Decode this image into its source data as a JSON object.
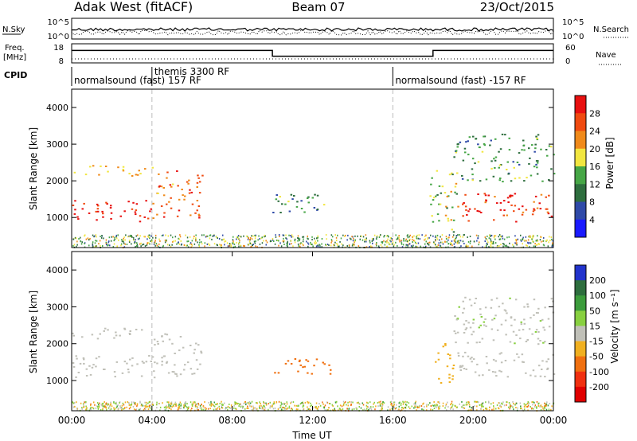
{
  "header": {
    "station": "Adak West (fitACF)",
    "beam": "Beam 07",
    "date": "23/Oct/2015"
  },
  "panels": {
    "nsky_label": "N.Sky",
    "nsearch_label": "N.Search",
    "freq_label": "Freq.",
    "freq_unit": "[MHz]",
    "nave_label": "Nave",
    "cpid_label": "CPID",
    "nsky_ticks": [
      "10^5",
      "10^0"
    ],
    "nsearch_ticks": [
      "10^5",
      "10^0"
    ],
    "freq_ticks": [
      "18",
      "8"
    ],
    "nave_ticks": [
      "60",
      "0"
    ],
    "cpid_segments": [
      {
        "label": "normalsound (fast) 157 RF",
        "start": 0.0,
        "end": 16.0
      },
      {
        "label": "themis 3300 RF",
        "start": 4.0,
        "end": 16.0
      },
      {
        "label": "normalsound (fast) -157 RF",
        "start": 16.0,
        "end": 24.0
      }
    ],
    "freq_steps": [
      {
        "start": 0.0,
        "end": 10.0,
        "mhz": 14.5
      },
      {
        "start": 10.0,
        "end": 18.0,
        "mhz": 11.5
      },
      {
        "start": 18.0,
        "end": 24.0,
        "mhz": 14.5
      }
    ]
  },
  "chart_data": [
    {
      "type": "heatmap",
      "title": "",
      "xlabel": "",
      "ylabel": "Slant Range [km]",
      "xlim": [
        0,
        24
      ],
      "ylim": [
        180,
        4500
      ],
      "yticks": [
        "1000",
        "2000",
        "3000",
        "4000"
      ],
      "colorbar_label": "Power [dB]",
      "colorbar_ticks": [
        "4",
        "8",
        "12",
        "16",
        "20",
        "24",
        "28"
      ],
      "colorbar_colors": [
        "#1a1aff",
        "#2f4aa8",
        "#2e6e3e",
        "#46a646",
        "#f2e640",
        "#f08a1a",
        "#f04a10",
        "#e81010"
      ],
      "echo_regions": [
        {
          "t0": 0.0,
          "t1": 4.0,
          "r0": 900,
          "r1": 1500,
          "value": 28
        },
        {
          "t0": 0.0,
          "t1": 4.0,
          "r0": 2150,
          "r1": 2450,
          "value": 18
        },
        {
          "t0": 4.0,
          "t1": 6.5,
          "r0": 1000,
          "r1": 2300,
          "value": 22
        },
        {
          "t0": 10.0,
          "t1": 13.0,
          "r0": 1150,
          "r1": 1700,
          "value": 10
        },
        {
          "t0": 17.8,
          "t1": 19.2,
          "r0": 600,
          "r1": 2300,
          "value": 14
        },
        {
          "t0": 19.2,
          "t1": 24.0,
          "r0": 900,
          "r1": 1700,
          "value": 26
        },
        {
          "t0": 19.0,
          "t1": 24.0,
          "r0": 2000,
          "r1": 3300,
          "value": 10
        }
      ]
    },
    {
      "type": "heatmap",
      "title": "",
      "xlabel": "Time UT",
      "ylabel": "Slant Range [km]",
      "xlim": [
        0,
        24
      ],
      "ylim": [
        180,
        4500
      ],
      "yticks": [
        "1000",
        "2000",
        "3000",
        "4000"
      ],
      "xticks": [
        "00:00",
        "04:00",
        "08:00",
        "12:00",
        "16:00",
        "20:00",
        "00:00"
      ],
      "colorbar_label": "Velocity [m s⁻¹]",
      "colorbar_ticks": [
        "200",
        "100",
        "50",
        "15",
        "-15",
        "-50",
        "-100",
        "-200"
      ],
      "colorbar_colors": [
        "#2233cc",
        "#2e6e3e",
        "#3c9c3c",
        "#88d040",
        "#c0c0b8",
        "#f0b020",
        "#f07010",
        "#f03010",
        "#e00000"
      ],
      "echo_regions": [
        {
          "t0": 0.0,
          "t1": 4.0,
          "r0": 1100,
          "r1": 1700,
          "value": 0
        },
        {
          "t0": 0.0,
          "t1": 4.0,
          "r0": 2150,
          "r1": 2450,
          "value": 0
        },
        {
          "t0": 4.0,
          "t1": 6.5,
          "r0": 1100,
          "r1": 2300,
          "value": 0
        },
        {
          "t0": 10.0,
          "t1": 13.0,
          "r0": 1200,
          "r1": 1650,
          "value": -60
        },
        {
          "t0": 18.0,
          "t1": 19.0,
          "r0": 900,
          "r1": 2100,
          "value": -40
        },
        {
          "t0": 19.2,
          "t1": 24.0,
          "r0": 1100,
          "r1": 1800,
          "value": 0
        },
        {
          "t0": 19.0,
          "t1": 24.0,
          "r0": 2000,
          "r1": 3300,
          "value": 10
        }
      ]
    }
  ]
}
